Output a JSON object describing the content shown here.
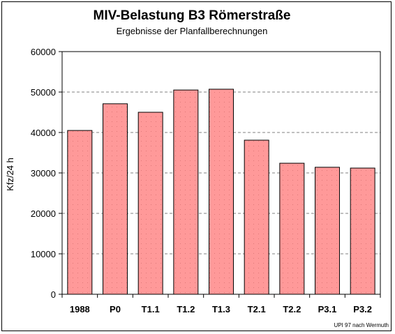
{
  "chart_data": {
    "type": "bar",
    "title": "MIV-Belastung B3 Römerstraße",
    "subtitle": "Ergebnisse der Planfallberechnungen",
    "xlabel": "",
    "ylabel": "Kfz/24 h",
    "categories": [
      "1988",
      "P0",
      "T1.1",
      "T1.2",
      "T1.3",
      "T2.1",
      "T2.2",
      "P3.1",
      "P3.2"
    ],
    "values": [
      40500,
      47100,
      45000,
      50500,
      50700,
      38100,
      32400,
      31400,
      31200
    ],
    "ylim": [
      0,
      60000
    ],
    "yticks": [
      "0",
      "10000",
      "20000",
      "30000",
      "40000",
      "50000",
      "60000"
    ],
    "grid": "horizontal dashed",
    "legend": "none",
    "source_note": "UPI 97 nach Wermuth",
    "colors": {
      "bar": "#ff9999",
      "bar_edge": "#000000",
      "grid": "#808080"
    }
  }
}
